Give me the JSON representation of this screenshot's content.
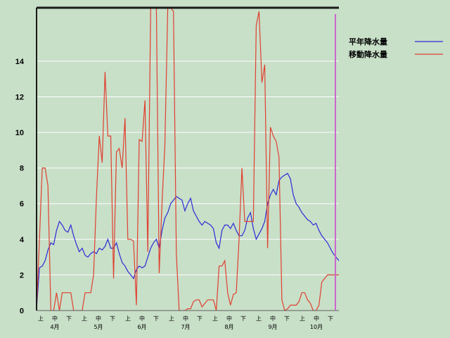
{
  "chart_data": {
    "type": "line",
    "title": "",
    "xlabel": "",
    "ylabel": "",
    "ylim": [
      0,
      17
    ],
    "yticks": [
      0,
      2,
      4,
      6,
      8,
      10,
      12,
      14
    ],
    "grid": true,
    "legend_position": "top-right",
    "period_labels": [
      "上",
      "中",
      "下",
      "上",
      "中",
      "下",
      "上",
      "中",
      "下",
      "上",
      "中",
      "下",
      "上",
      "中",
      "下",
      "上",
      "中",
      "下",
      "上",
      "中",
      "下"
    ],
    "month_labels": [
      "4月",
      "5月",
      "6月",
      "7月",
      "8月",
      "9月",
      "10月"
    ],
    "series": [
      {
        "name": "平年降水量",
        "color": "#2b2bd6",
        "x": [
          0,
          2,
          4,
          6,
          8,
          10,
          12,
          14,
          16,
          18,
          20,
          22,
          24,
          26,
          28,
          30,
          32,
          34,
          36,
          38,
          40,
          42,
          44,
          46,
          48,
          50,
          52,
          54,
          56,
          58,
          60,
          62,
          64,
          66,
          68,
          70,
          72,
          74,
          76,
          78,
          80,
          82,
          84,
          86,
          88,
          90,
          92,
          94,
          96,
          98,
          100,
          102,
          104,
          106,
          108,
          110,
          112,
          114,
          116,
          118,
          120,
          122,
          124,
          126,
          128,
          130,
          132,
          134,
          136,
          138,
          140,
          142,
          144,
          146,
          148,
          150,
          152,
          154,
          156,
          158,
          160,
          162,
          164,
          166,
          168,
          170,
          172,
          174,
          176,
          178,
          180,
          182,
          184,
          186,
          188,
          190,
          192,
          194,
          196,
          198,
          200,
          202,
          204,
          206,
          208,
          210,
          212
        ],
        "values": [
          0.1,
          2.4,
          2.5,
          2.8,
          3.4,
          3.8,
          3.7,
          4.5,
          5.0,
          4.8,
          4.5,
          4.4,
          4.8,
          4.2,
          3.7,
          3.3,
          3.5,
          3.1,
          3.0,
          3.2,
          3.3,
          3.2,
          3.5,
          3.4,
          3.6,
          4.0,
          3.5,
          3.5,
          3.8,
          3.2,
          2.7,
          2.5,
          2.2,
          2.0,
          1.8,
          2.3,
          2.5,
          2.4,
          2.5,
          3.0,
          3.5,
          3.8,
          4.0,
          3.5,
          4.5,
          5.2,
          5.5,
          6.0,
          6.2,
          6.4,
          6.3,
          6.2,
          5.6,
          6.0,
          6.3,
          5.6,
          5.3,
          5.0,
          4.8,
          5.0,
          4.9,
          4.8,
          4.6,
          3.8,
          3.5,
          4.5,
          4.8,
          4.8,
          4.6,
          4.9,
          4.5,
          4.2,
          4.2,
          4.5,
          5.2,
          5.5,
          4.6,
          4.0,
          4.3,
          4.6,
          5.0,
          6.0,
          6.5,
          6.8,
          6.5,
          7.3,
          7.5,
          7.6,
          7.7,
          7.4,
          6.5,
          6.0,
          5.8,
          5.5,
          5.3,
          5.1,
          5.0,
          4.8,
          4.9,
          4.5,
          4.2,
          4.0,
          3.8,
          3.5,
          3.2,
          3.0,
          2.8
        ]
      },
      {
        "name": "移動降水量",
        "color": "#e04030",
        "x": [
          0,
          2,
          4,
          6,
          8,
          10,
          12,
          14,
          16,
          18,
          20,
          22,
          24,
          26,
          28,
          30,
          32,
          34,
          36,
          38,
          40,
          42,
          44,
          46,
          48,
          50,
          52,
          54,
          56,
          58,
          60,
          62,
          64,
          66,
          68,
          70,
          72,
          74,
          76,
          78,
          80,
          82,
          84,
          86,
          88,
          90,
          92,
          94,
          96,
          98,
          100,
          102,
          104,
          106,
          108,
          110,
          112,
          114,
          116,
          118,
          120,
          122,
          124,
          126,
          128,
          130,
          132,
          134,
          136,
          138,
          140,
          142,
          144,
          146,
          148,
          150,
          152,
          154,
          156,
          158,
          160,
          162,
          164,
          166,
          168,
          170,
          172,
          174,
          176,
          178,
          180,
          182,
          184,
          186,
          188,
          190,
          192,
          194,
          196,
          198,
          200,
          202,
          204,
          206,
          208,
          210,
          212
        ],
        "values": [
          0.0,
          4.0,
          8.0,
          8.0,
          7.0,
          0.0,
          0.0,
          1.0,
          0.0,
          1.0,
          1.0,
          1.0,
          1.0,
          0.0,
          0.0,
          0.0,
          0.0,
          1.0,
          1.0,
          1.0,
          2.0,
          6.4,
          9.8,
          8.3,
          13.4,
          9.8,
          9.8,
          1.8,
          8.9,
          9.1,
          8.0,
          10.8,
          4.0,
          4.0,
          3.9,
          0.3,
          9.6,
          9.5,
          11.8,
          3.3,
          17.0,
          17.0,
          17.0,
          2.1,
          6.1,
          9.3,
          17.0,
          17.0,
          16.8,
          3.2,
          0.0,
          0.0,
          0.0,
          0.1,
          0.1,
          0.5,
          0.6,
          0.6,
          0.2,
          0.4,
          0.6,
          0.6,
          0.6,
          0.0,
          2.5,
          2.5,
          2.8,
          1.0,
          0.3,
          0.9,
          1.0,
          4.0,
          8.0,
          5.0,
          5.0,
          5.0,
          5.0,
          16.0,
          16.8,
          12.8,
          13.8,
          3.5,
          10.3,
          9.8,
          9.5,
          8.6,
          0.6,
          0.0,
          0.1,
          0.3,
          0.3,
          0.3,
          0.5,
          1.0,
          1.0,
          0.6,
          0.4,
          0.0,
          0.0,
          0.3,
          1.6,
          1.8,
          2.0,
          2.0,
          2.0,
          2.0,
          2.0
        ]
      }
    ]
  }
}
